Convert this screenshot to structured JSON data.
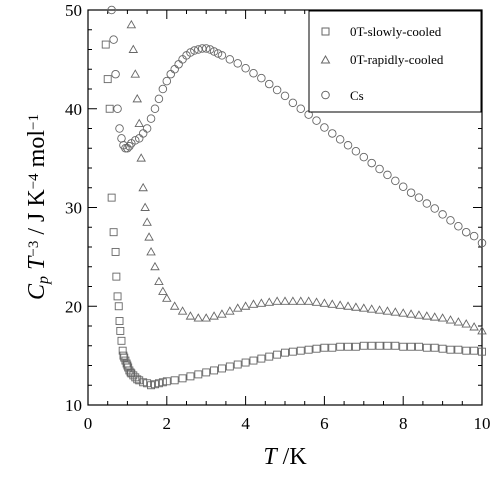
{
  "chart_data": {
    "type": "scatter",
    "xlabel": {
      "symbol": "T",
      "unit": " /K"
    },
    "ylabel": {
      "c": "C",
      "c_sub": "p",
      "t": " T",
      "t_sup": "−3",
      "unit": " / J K",
      "unit_sup1": "−4",
      "mol": " mol",
      "unit_sup2": "−1"
    },
    "xlim": [
      0,
      10
    ],
    "ylim": [
      10,
      50
    ],
    "x_ticks": [
      "0",
      "2",
      "4",
      "6",
      "8",
      "10"
    ],
    "y_ticks": [
      "10",
      "20",
      "30",
      "40",
      "50"
    ],
    "grid": false,
    "legend_position": "top-right",
    "series": [
      {
        "name": "0T-slowly-cooled",
        "marker": "square",
        "x": [
          0.45,
          0.5,
          0.55,
          0.6,
          0.65,
          0.7,
          0.72,
          0.75,
          0.78,
          0.8,
          0.82,
          0.85,
          0.88,
          0.9,
          0.92,
          0.95,
          0.98,
          1.0,
          1.02,
          1.05,
          1.08,
          1.1,
          1.15,
          1.2,
          1.25,
          1.3,
          1.4,
          1.5,
          1.6,
          1.7,
          1.8,
          1.9,
          2.0,
          2.2,
          2.4,
          2.6,
          2.8,
          3.0,
          3.2,
          3.4,
          3.6,
          3.8,
          4.0,
          4.2,
          4.4,
          4.6,
          4.8,
          5.0,
          5.2,
          5.4,
          5.6,
          5.8,
          6.0,
          6.2,
          6.4,
          6.6,
          6.8,
          7.0,
          7.2,
          7.4,
          7.6,
          7.8,
          8.0,
          8.2,
          8.4,
          8.6,
          8.8,
          9.0,
          9.2,
          9.4,
          9.6,
          9.8,
          10.0
        ],
        "y": [
          46.5,
          43.0,
          40.0,
          31.0,
          27.5,
          25.5,
          23.0,
          21.0,
          20.0,
          18.5,
          17.5,
          16.5,
          15.5,
          15.0,
          14.8,
          14.5,
          14.2,
          14.0,
          13.8,
          13.5,
          13.3,
          13.2,
          13.0,
          12.8,
          12.6,
          12.5,
          12.3,
          12.2,
          12.0,
          12.1,
          12.2,
          12.3,
          12.4,
          12.5,
          12.7,
          12.9,
          13.1,
          13.3,
          13.5,
          13.7,
          13.9,
          14.1,
          14.3,
          14.5,
          14.7,
          14.9,
          15.1,
          15.3,
          15.4,
          15.5,
          15.6,
          15.7,
          15.8,
          15.8,
          15.9,
          15.9,
          15.9,
          16.0,
          16.0,
          16.0,
          16.0,
          16.0,
          15.9,
          15.9,
          15.9,
          15.8,
          15.8,
          15.7,
          15.6,
          15.6,
          15.5,
          15.5,
          15.4
        ]
      },
      {
        "name": "0T-rapidly-cooled",
        "marker": "triangle",
        "x": [
          1.1,
          1.15,
          1.2,
          1.25,
          1.3,
          1.35,
          1.4,
          1.45,
          1.5,
          1.55,
          1.6,
          1.7,
          1.8,
          1.9,
          2.0,
          2.2,
          2.4,
          2.6,
          2.8,
          3.0,
          3.2,
          3.4,
          3.6,
          3.8,
          4.0,
          4.2,
          4.4,
          4.6,
          4.8,
          5.0,
          5.2,
          5.4,
          5.6,
          5.8,
          6.0,
          6.2,
          6.4,
          6.6,
          6.8,
          7.0,
          7.2,
          7.4,
          7.6,
          7.8,
          8.0,
          8.2,
          8.4,
          8.6,
          8.8,
          9.0,
          9.2,
          9.4,
          9.6,
          9.8,
          10.0
        ],
        "y": [
          48.5,
          46.0,
          43.5,
          41.0,
          38.5,
          35.0,
          32.0,
          30.0,
          28.5,
          27.0,
          25.5,
          24.0,
          22.5,
          21.5,
          20.8,
          20.0,
          19.5,
          19.0,
          18.8,
          18.8,
          19.0,
          19.2,
          19.5,
          19.8,
          20.0,
          20.2,
          20.3,
          20.4,
          20.5,
          20.5,
          20.5,
          20.5,
          20.5,
          20.4,
          20.3,
          20.2,
          20.1,
          20.0,
          19.9,
          19.8,
          19.7,
          19.6,
          19.5,
          19.4,
          19.3,
          19.2,
          19.1,
          19.0,
          18.9,
          18.8,
          18.6,
          18.4,
          18.2,
          17.9,
          17.5
        ]
      },
      {
        "name": "Cs",
        "marker": "circle",
        "x": [
          0.6,
          0.65,
          0.7,
          0.75,
          0.8,
          0.85,
          0.9,
          0.95,
          1.0,
          1.05,
          1.1,
          1.2,
          1.3,
          1.4,
          1.5,
          1.6,
          1.7,
          1.8,
          1.9,
          2.0,
          2.1,
          2.2,
          2.3,
          2.4,
          2.5,
          2.6,
          2.7,
          2.8,
          2.9,
          3.0,
          3.1,
          3.2,
          3.3,
          3.4,
          3.6,
          3.8,
          4.0,
          4.2,
          4.4,
          4.6,
          4.8,
          5.0,
          5.2,
          5.4,
          5.6,
          5.8,
          6.0,
          6.2,
          6.4,
          6.6,
          6.8,
          7.0,
          7.2,
          7.4,
          7.6,
          7.8,
          8.0,
          8.2,
          8.4,
          8.6,
          8.8,
          9.0,
          9.2,
          9.4,
          9.6,
          9.8,
          10.0
        ],
        "y": [
          50.0,
          47.0,
          43.5,
          40.0,
          38.0,
          37.0,
          36.3,
          36.0,
          36.0,
          36.2,
          36.5,
          36.8,
          37.0,
          37.5,
          38.0,
          39.0,
          40.0,
          41.0,
          42.0,
          42.8,
          43.5,
          44.0,
          44.5,
          45.0,
          45.4,
          45.7,
          45.9,
          46.0,
          46.1,
          46.1,
          46.0,
          45.8,
          45.6,
          45.4,
          45.0,
          44.6,
          44.1,
          43.6,
          43.1,
          42.5,
          41.9,
          41.3,
          40.6,
          40.0,
          39.4,
          38.8,
          38.1,
          37.5,
          36.9,
          36.3,
          35.7,
          35.1,
          34.5,
          33.9,
          33.3,
          32.7,
          32.1,
          31.5,
          31.0,
          30.4,
          29.9,
          29.3,
          28.7,
          28.1,
          27.5,
          27.1,
          26.4
        ]
      }
    ]
  }
}
